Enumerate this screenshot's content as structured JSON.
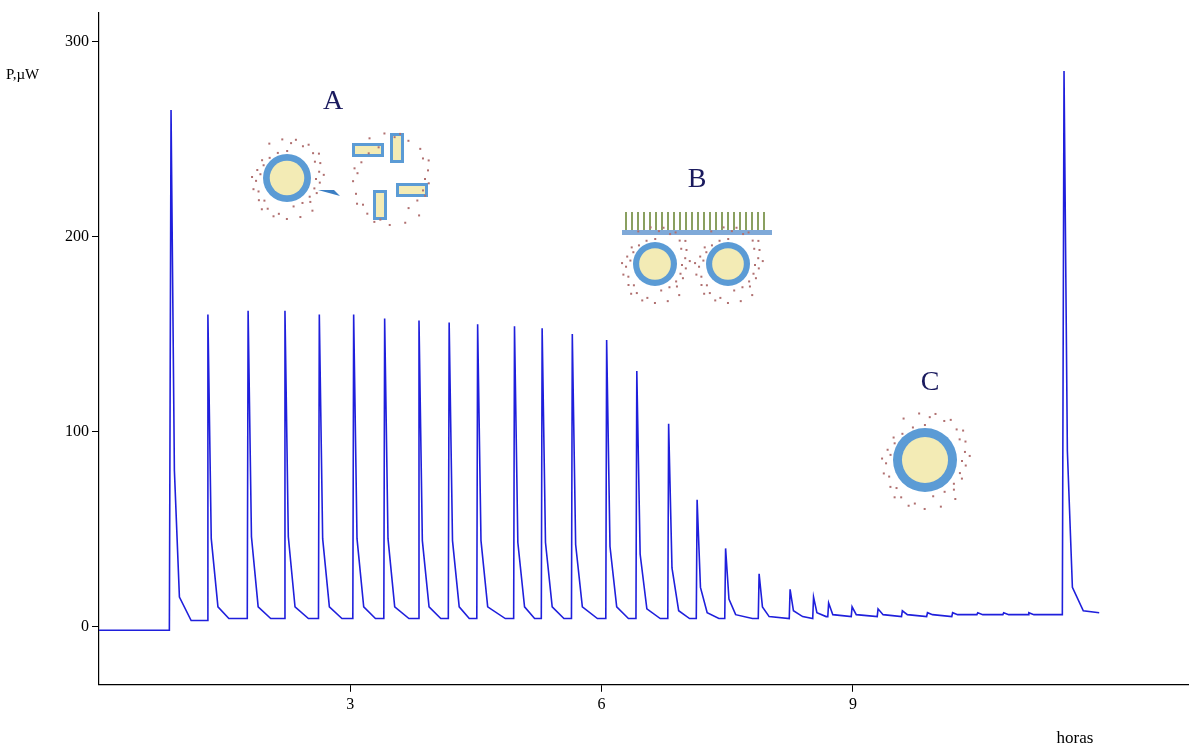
{
  "chart_data": {
    "type": "line",
    "x_label": "horas",
    "y_label": "P,µW",
    "annotations": [
      "A",
      "B",
      "C"
    ],
    "xlim": [
      0,
      13
    ],
    "xticks": [
      3,
      6,
      9
    ],
    "ylim": [
      -30,
      315
    ],
    "yticks": [
      0,
      100,
      200,
      300
    ],
    "grid": false,
    "color": "#1f1fdc",
    "x": [
      0,
      0.84,
      0.86,
      0.9,
      0.96,
      1.1,
      1.29,
      1.3,
      1.34,
      1.42,
      1.55,
      1.77,
      1.78,
      1.82,
      1.9,
      2.05,
      2.21,
      2.22,
      2.26,
      2.34,
      2.5,
      2.62,
      2.63,
      2.67,
      2.75,
      2.9,
      3.03,
      3.04,
      3.08,
      3.16,
      3.3,
      3.4,
      3.41,
      3.45,
      3.53,
      3.7,
      3.81,
      3.82,
      3.86,
      3.94,
      4.08,
      4.17,
      4.18,
      4.22,
      4.3,
      4.42,
      4.51,
      4.52,
      4.56,
      4.64,
      4.85,
      4.95,
      4.96,
      5.0,
      5.08,
      5.2,
      5.28,
      5.29,
      5.33,
      5.41,
      5.55,
      5.64,
      5.65,
      5.69,
      5.77,
      5.95,
      6.05,
      6.06,
      6.1,
      6.18,
      6.32,
      6.41,
      6.42,
      6.46,
      6.54,
      6.7,
      6.79,
      6.8,
      6.84,
      6.92,
      7.05,
      7.13,
      7.14,
      7.18,
      7.26,
      7.4,
      7.47,
      7.48,
      7.52,
      7.6,
      7.8,
      7.87,
      7.88,
      7.92,
      8.0,
      8.24,
      8.25,
      8.29,
      8.4,
      8.52,
      8.53,
      8.57,
      8.68,
      8.7,
      8.71,
      8.76,
      8.98,
      8.99,
      9.04,
      9.29,
      9.3,
      9.36,
      9.58,
      9.59,
      9.65,
      9.88,
      9.89,
      9.95,
      10.18,
      10.19,
      10.25,
      10.48,
      10.49,
      10.55,
      10.79,
      10.8,
      10.86,
      11.09,
      11.1,
      11.16,
      11.5,
      11.52,
      11.56,
      11.62,
      11.75,
      11.94
    ],
    "values": [
      -2,
      -2,
      265,
      80,
      15,
      3,
      3,
      160,
      45,
      10,
      4,
      4,
      162,
      46,
      10,
      4,
      4,
      162,
      46,
      10,
      4,
      4,
      160,
      45,
      10,
      4,
      4,
      160,
      45,
      10,
      4,
      4,
      158,
      45,
      10,
      4,
      4,
      157,
      44,
      10,
      4,
      4,
      156,
      44,
      10,
      4,
      4,
      155,
      44,
      10,
      4,
      4,
      154,
      43,
      10,
      4,
      4,
      153,
      43,
      10,
      4,
      4,
      150,
      42,
      10,
      4,
      4,
      147,
      41,
      10,
      4,
      4,
      131,
      37,
      9,
      4,
      4,
      104,
      30,
      8,
      4,
      4,
      65,
      20,
      7,
      4,
      4,
      40,
      14,
      6,
      4,
      4,
      27,
      10,
      5,
      4,
      19,
      8,
      5,
      4,
      15,
      7,
      5,
      5,
      12,
      6,
      5,
      10,
      6,
      5,
      9,
      6,
      5,
      8,
      6,
      5,
      7,
      6,
      5,
      7,
      6,
      6,
      7,
      6,
      6,
      7,
      6,
      6,
      7,
      6,
      6,
      285,
      90,
      20,
      8,
      7
    ]
  }
}
